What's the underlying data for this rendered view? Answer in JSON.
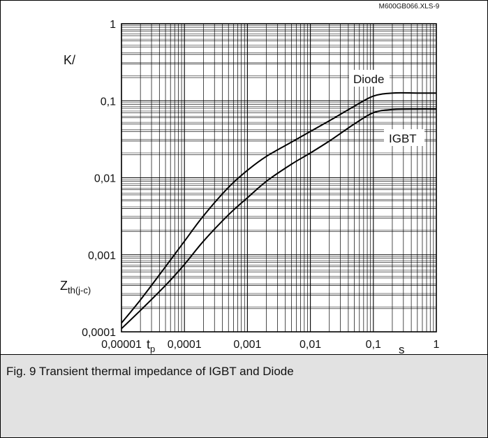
{
  "file_tag": "M600GB066.XLS-9",
  "caption": "Fig. 9 Transient thermal impedance of IGBT and Diode",
  "chart_data": {
    "type": "line",
    "x_scale": "log",
    "y_scale": "log",
    "xlim": [
      1e-05,
      1
    ],
    "ylim": [
      0.0001,
      1
    ],
    "x_tick_labels": [
      "0,00001",
      "0,0001",
      "0,001",
      "0,01",
      "0,1",
      "1"
    ],
    "y_tick_labels": [
      "0,0001",
      "0,001",
      "0,01",
      "0,1",
      "1"
    ],
    "y_unit": "K/",
    "y_symbol": {
      "base": "Z",
      "sub": "th(j-c)"
    },
    "x_symbol": {
      "base": "t",
      "sub": "p"
    },
    "x_unit": "s",
    "grid": true,
    "series": [
      {
        "name": "Diode",
        "x": [
          1e-05,
          2e-05,
          5e-05,
          0.0001,
          0.0002,
          0.0005,
          0.001,
          0.002,
          0.005,
          0.01,
          0.02,
          0.05,
          0.1,
          0.2,
          0.5,
          1
        ],
        "y": [
          0.00013,
          0.00026,
          0.0007,
          0.0015,
          0.0032,
          0.0075,
          0.0125,
          0.019,
          0.029,
          0.04,
          0.055,
          0.085,
          0.115,
          0.126,
          0.126,
          0.126
        ]
      },
      {
        "name": "IGBT",
        "x": [
          1e-05,
          2e-05,
          5e-05,
          0.0001,
          0.0002,
          0.0005,
          0.001,
          0.002,
          0.005,
          0.01,
          0.02,
          0.05,
          0.1,
          0.2,
          0.5,
          1
        ],
        "y": [
          0.00011,
          0.00019,
          0.0004,
          0.00075,
          0.0015,
          0.0033,
          0.0055,
          0.009,
          0.015,
          0.021,
          0.03,
          0.05,
          0.07,
          0.077,
          0.078,
          0.078
        ]
      }
    ]
  }
}
